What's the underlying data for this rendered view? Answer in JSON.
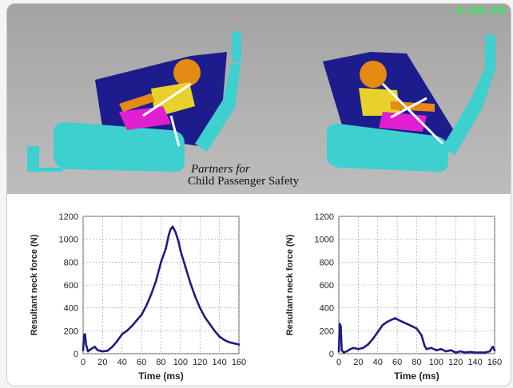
{
  "overlay": {
    "timestamp": "0:00:00"
  },
  "caption": {
    "line1": "Partners for",
    "line2": "Child Passenger Safety"
  },
  "colors": {
    "trace": "#1d1d80",
    "seat": "#1c1c8c",
    "cushion": "#3ecfcf",
    "child_head": "#e58a12",
    "child_torso": "#e8d12a",
    "child_pelvis": "#e020d0"
  },
  "chart_data": [
    {
      "type": "line",
      "xlabel": "Time (ms)",
      "ylabel": "Resultant neck force (N)",
      "xlim": [
        0,
        160
      ],
      "ylim": [
        0,
        1200
      ],
      "xticks": [
        "0",
        "20",
        "40",
        "60",
        "80",
        "100",
        "120",
        "140",
        "160"
      ],
      "yticks": [
        "0",
        "200",
        "400",
        "600",
        "800",
        "1000",
        "1200"
      ],
      "grid": true,
      "series": [
        {
          "x": [
            0,
            1,
            2,
            3,
            5,
            8,
            12,
            15,
            20,
            25,
            30,
            35,
            40,
            45,
            50,
            55,
            60,
            65,
            70,
            75,
            80,
            85,
            88,
            90,
            92,
            95,
            98,
            100,
            105,
            110,
            115,
            120,
            125,
            130,
            135,
            140,
            145,
            150,
            155,
            160
          ],
          "y": [
            30,
            160,
            170,
            80,
            20,
            40,
            60,
            30,
            20,
            25,
            60,
            110,
            170,
            200,
            240,
            290,
            340,
            420,
            520,
            640,
            800,
            920,
            1040,
            1090,
            1110,
            1060,
            980,
            900,
            760,
            620,
            500,
            400,
            320,
            260,
            200,
            150,
            120,
            100,
            90,
            80
          ]
        }
      ]
    },
    {
      "type": "line",
      "xlabel": "Time (ms)",
      "ylabel": "Resultant neck force (N)",
      "xlim": [
        0,
        160
      ],
      "ylim": [
        0,
        1200
      ],
      "xticks": [
        "0",
        "20",
        "40",
        "60",
        "80",
        "100",
        "120",
        "140",
        "160"
      ],
      "yticks": [
        "0",
        "200",
        "400",
        "600",
        "800",
        "1000",
        "1200"
      ],
      "grid": true,
      "series": [
        {
          "x": [
            0,
            1,
            2,
            3,
            5,
            8,
            12,
            15,
            20,
            25,
            30,
            35,
            40,
            45,
            50,
            55,
            58,
            60,
            65,
            70,
            75,
            80,
            85,
            88,
            90,
            95,
            100,
            105,
            110,
            115,
            120,
            125,
            130,
            135,
            140,
            145,
            150,
            155,
            158,
            160
          ],
          "y": [
            20,
            260,
            240,
            30,
            10,
            20,
            40,
            50,
            40,
            50,
            80,
            130,
            190,
            250,
            280,
            300,
            310,
            300,
            280,
            260,
            240,
            220,
            160,
            70,
            40,
            50,
            30,
            40,
            20,
            30,
            10,
            20,
            10,
            15,
            10,
            10,
            10,
            20,
            60,
            30
          ]
        }
      ]
    }
  ]
}
